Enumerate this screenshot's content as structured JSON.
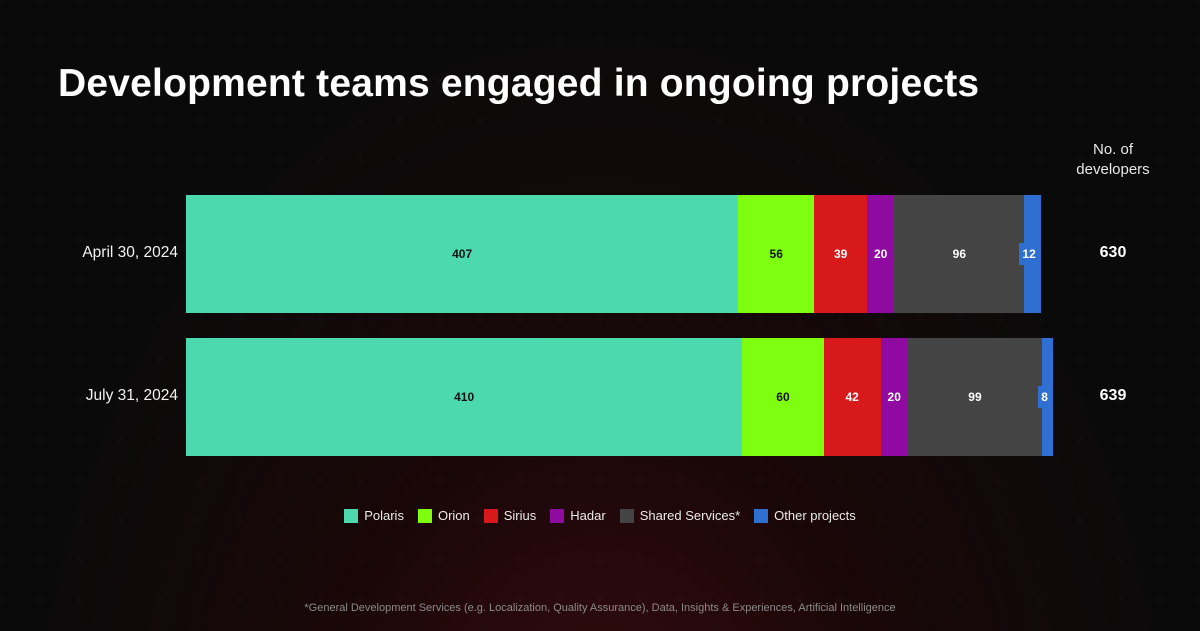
{
  "chart_data": {
    "type": "bar",
    "orientation": "horizontal-stacked",
    "title": "Development teams engaged in ongoing projects",
    "total_header": "No. of\ndevelopers",
    "categories": [
      "April 30, 2024",
      "July 31, 2024"
    ],
    "series": [
      {
        "name": "Polaris",
        "color": "#4dd9ae",
        "text_color": "#111111",
        "values": [
          407,
          410
        ]
      },
      {
        "name": "Orion",
        "color": "#7fff10",
        "text_color": "#111111",
        "values": [
          56,
          60
        ]
      },
      {
        "name": "Sirius",
        "color": "#d8191c",
        "text_color": "#ffffff",
        "values": [
          39,
          42
        ]
      },
      {
        "name": "Hadar",
        "color": "#8e0aa0",
        "text_color": "#ffffff",
        "values": [
          20,
          20
        ]
      },
      {
        "name": "Shared Services*",
        "color": "#444444",
        "text_color": "#ffffff",
        "values": [
          96,
          99
        ]
      },
      {
        "name": "Other projects",
        "color": "#2f6fd1",
        "text_color": "#ffffff",
        "values": [
          12,
          8
        ]
      }
    ],
    "totals": [
      630,
      639
    ],
    "legend_position": "bottom",
    "footnote": "*General Development Services (e.g. Localization, Quality Assurance), Data, Insights & Experiences, Artificial Intelligence"
  }
}
